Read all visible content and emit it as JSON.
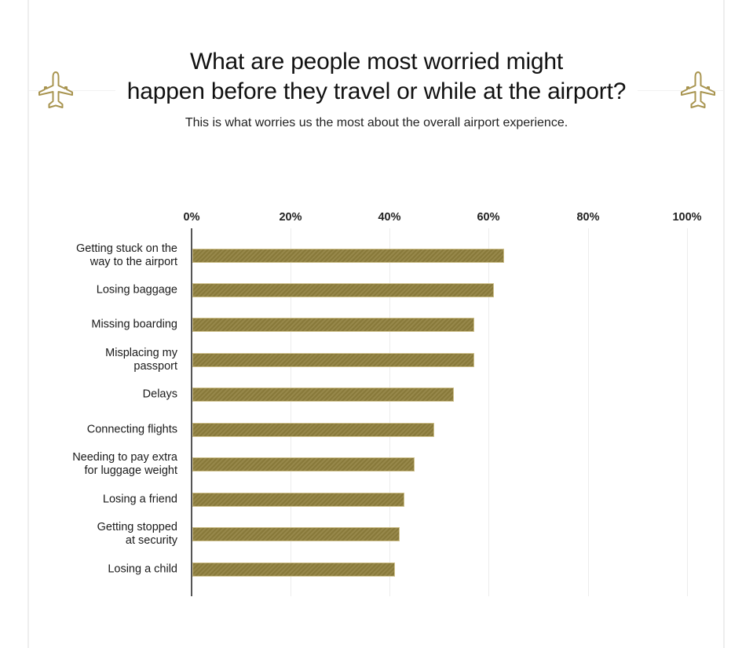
{
  "header": {
    "title_line1": "What are people most worried might",
    "title_line2": "happen before they travel or while at the airport?",
    "subtitle": "This is what worries us the most about the overall airport experience.",
    "left_icon": "airplane-icon",
    "right_icon": "airplane-icon"
  },
  "colors": {
    "bar": "#8f7f3d",
    "icon": "#a8944f",
    "axis": "#555555",
    "grid": "#ececec"
  },
  "axis": {
    "ticks": [
      "0%",
      "20%",
      "40%",
      "60%",
      "80%",
      "100%"
    ]
  },
  "bars": [
    {
      "label_line1": "Getting stuck on the",
      "label_line2": "way to the airport",
      "value": 63
    },
    {
      "label_line1": "Losing baggage",
      "label_line2": "",
      "value": 61
    },
    {
      "label_line1": "Missing boarding",
      "label_line2": "",
      "value": 57
    },
    {
      "label_line1": "Misplacing my",
      "label_line2": "passport",
      "value": 57
    },
    {
      "label_line1": "Delays",
      "label_line2": "",
      "value": 53
    },
    {
      "label_line1": "Connecting flights",
      "label_line2": "",
      "value": 49
    },
    {
      "label_line1": "Needing to pay extra",
      "label_line2": "for luggage weight",
      "value": 45
    },
    {
      "label_line1": "Losing a friend",
      "label_line2": "",
      "value": 43
    },
    {
      "label_line1": "Getting stopped",
      "label_line2": "at security",
      "value": 42
    },
    {
      "label_line1": "Losing a child",
      "label_line2": "",
      "value": 41
    }
  ],
  "chart_data": {
    "type": "bar",
    "orientation": "horizontal",
    "title": "What are people most worried might happen before they travel or while at the airport?",
    "subtitle": "This is what worries us the most about the overall airport experience.",
    "categories": [
      "Getting stuck on the way to the airport",
      "Losing baggage",
      "Missing boarding",
      "Misplacing my passport",
      "Delays",
      "Connecting flights",
      "Needing to pay extra for luggage weight",
      "Losing a friend",
      "Getting stopped at security",
      "Losing a child"
    ],
    "values": [
      63,
      61,
      57,
      57,
      53,
      49,
      45,
      43,
      42,
      41
    ],
    "xlabel": "",
    "ylabel": "",
    "xlim": [
      0,
      100
    ],
    "x_ticks": [
      "0%",
      "20%",
      "40%",
      "60%",
      "80%",
      "100%"
    ],
    "x_axis_position": "top",
    "grid": true,
    "legend": null
  }
}
